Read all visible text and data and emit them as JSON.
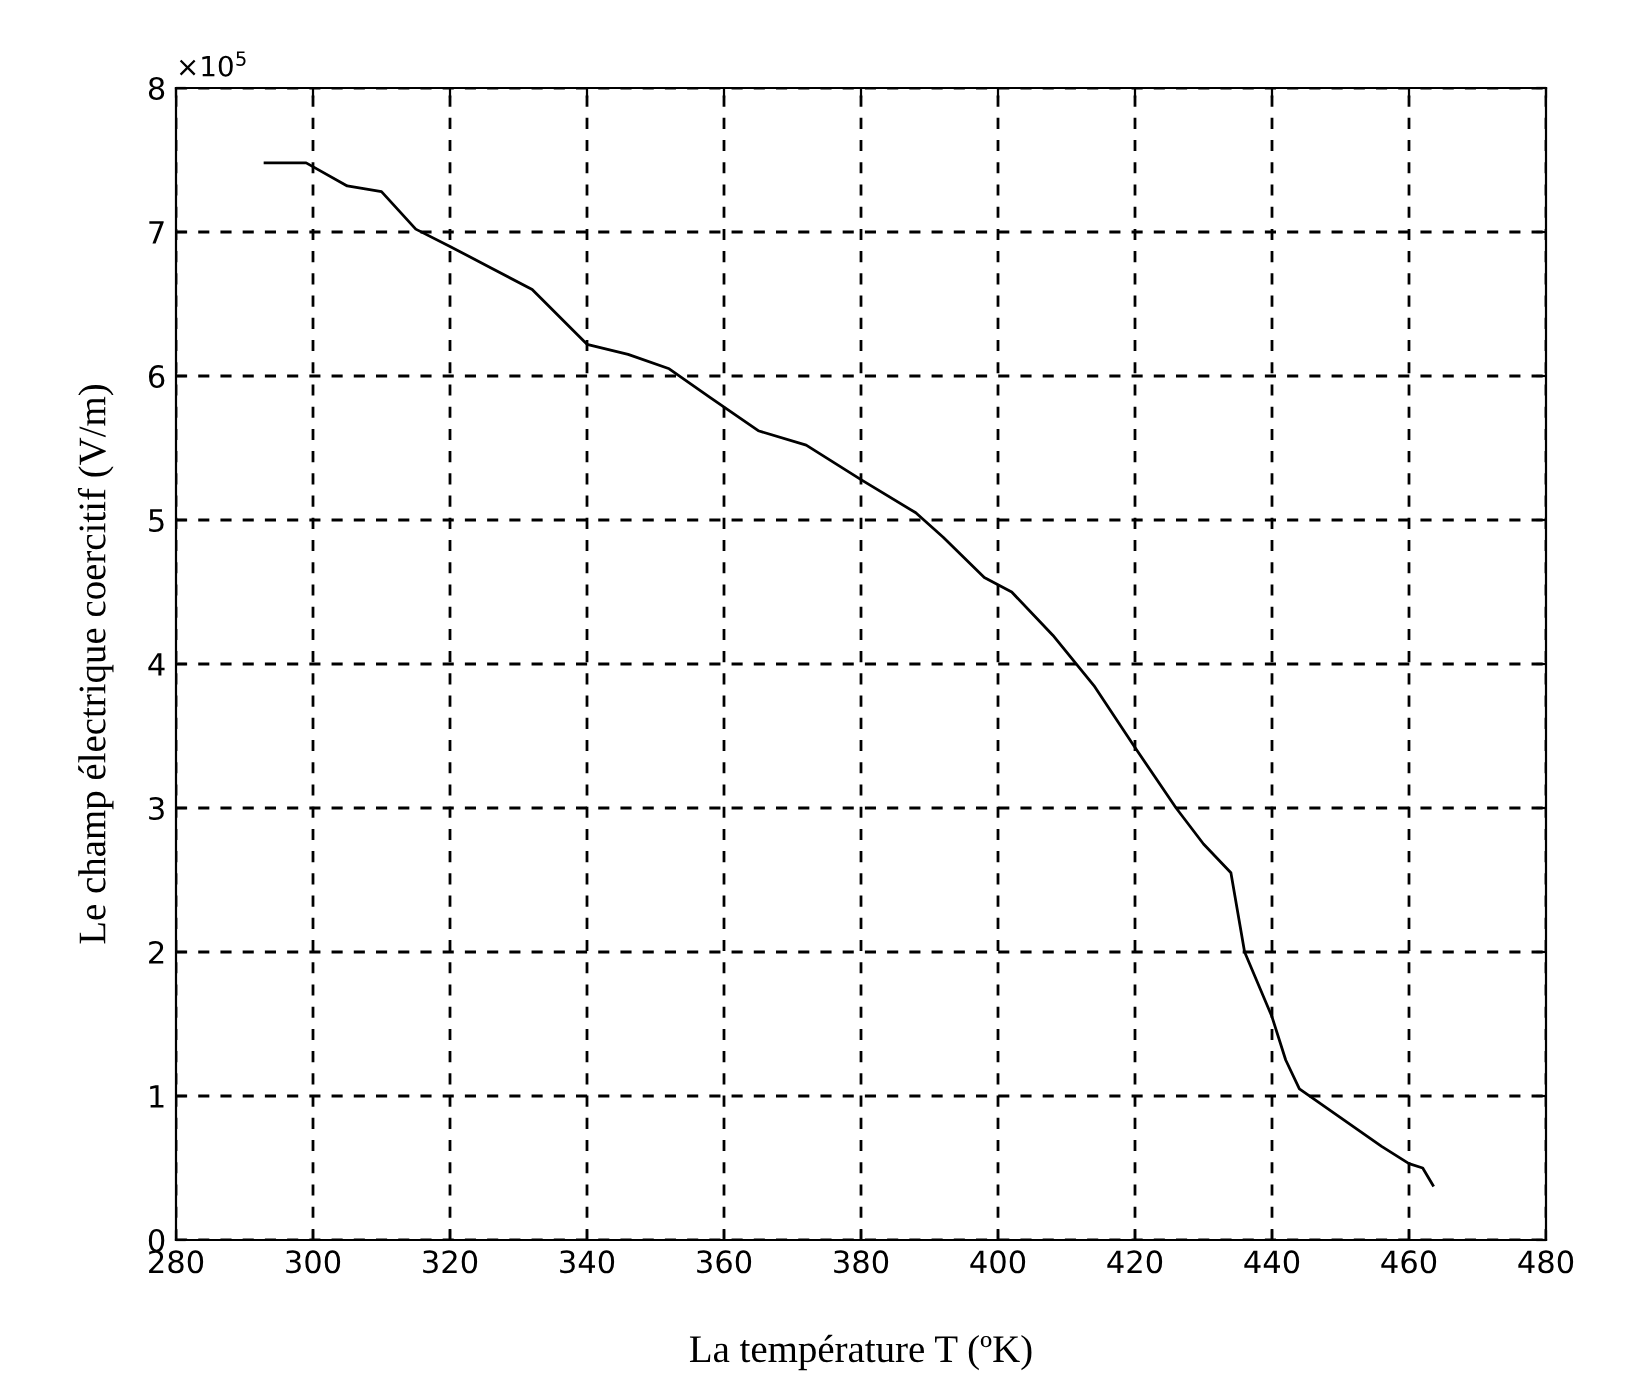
{
  "chart_data": {
    "type": "line",
    "xlabel": "La température T (ºK)",
    "ylabel": "Le champ électrique coercitif (V/m)",
    "annotations": [
      "×10$^{5}$"
    ],
    "x": [
      293,
      299,
      305,
      310,
      315,
      320,
      326,
      332,
      340,
      346,
      352,
      358,
      365,
      372,
      380,
      388,
      392,
      398,
      402,
      408,
      414,
      420,
      426,
      430,
      434,
      436,
      440,
      442,
      444,
      450,
      456,
      460,
      462,
      463.5
    ],
    "series": [
      {
        "color": "#000000",
        "values": [
          7.48,
          7.48,
          7.32,
          7.28,
          7.02,
          6.9,
          6.75,
          6.6,
          6.22,
          6.15,
          6.05,
          5.85,
          5.62,
          5.52,
          5.28,
          5.05,
          4.88,
          4.6,
          4.5,
          4.2,
          3.85,
          3.42,
          3.0,
          2.75,
          2.55,
          2.0,
          1.55,
          1.25,
          1.05,
          0.85,
          0.65,
          0.53,
          0.5,
          0.38
        ]
      }
    ],
    "xlim": [
      280,
      480
    ],
    "xticks": [
      280,
      300,
      320,
      340,
      360,
      380,
      400,
      420,
      440,
      460,
      480
    ],
    "ylim": [
      0,
      8
    ],
    "yticks": [
      0,
      1,
      2,
      3,
      4,
      5,
      6,
      7,
      8
    ],
    "grid": true,
    "line_style": "solid",
    "marker": "none",
    "legend": false
  }
}
